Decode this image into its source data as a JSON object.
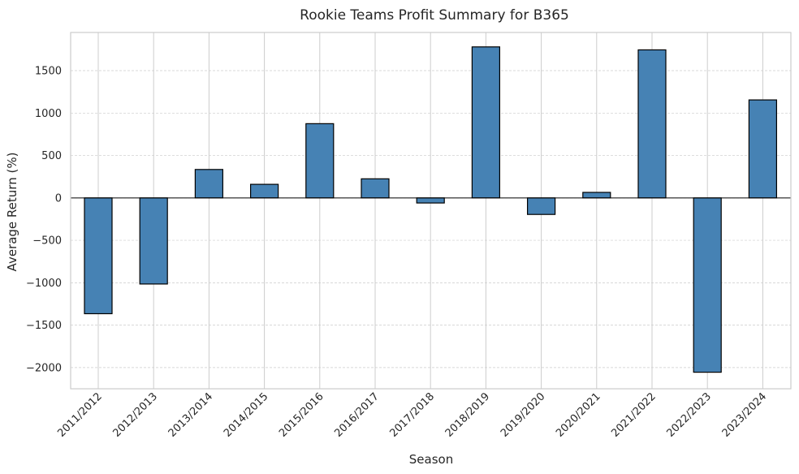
{
  "chart_data": {
    "type": "bar",
    "title": "Rookie Teams Profit Summary for B365",
    "xlabel": "Season",
    "ylabel": "Average Return (%)",
    "categories": [
      "2011/2012",
      "2012/2013",
      "2013/2014",
      "2014/2015",
      "2015/2016",
      "2016/2017",
      "2017/2018",
      "2018/2019",
      "2019/2020",
      "2020/2021",
      "2021/2022",
      "2022/2023",
      "2023/2024"
    ],
    "values": [
      -1365,
      -1015,
      335,
      160,
      875,
      225,
      -60,
      1780,
      -195,
      65,
      1745,
      -2055,
      1155
    ],
    "ylim": [
      -2250,
      1950
    ],
    "yticks": [
      -2000,
      -1500,
      -1000,
      -500,
      0,
      500,
      1000,
      1500
    ],
    "ytick_labels": [
      "−2000",
      "−1500",
      "−1000",
      "−500",
      "0",
      "500",
      "1000",
      "1500"
    ],
    "grid": true,
    "colors": {
      "bar": "#4682b4",
      "edge": "#000000",
      "grid_x": "#cccccc",
      "grid_y": "#cccccc",
      "frame": "#cccccc"
    }
  }
}
